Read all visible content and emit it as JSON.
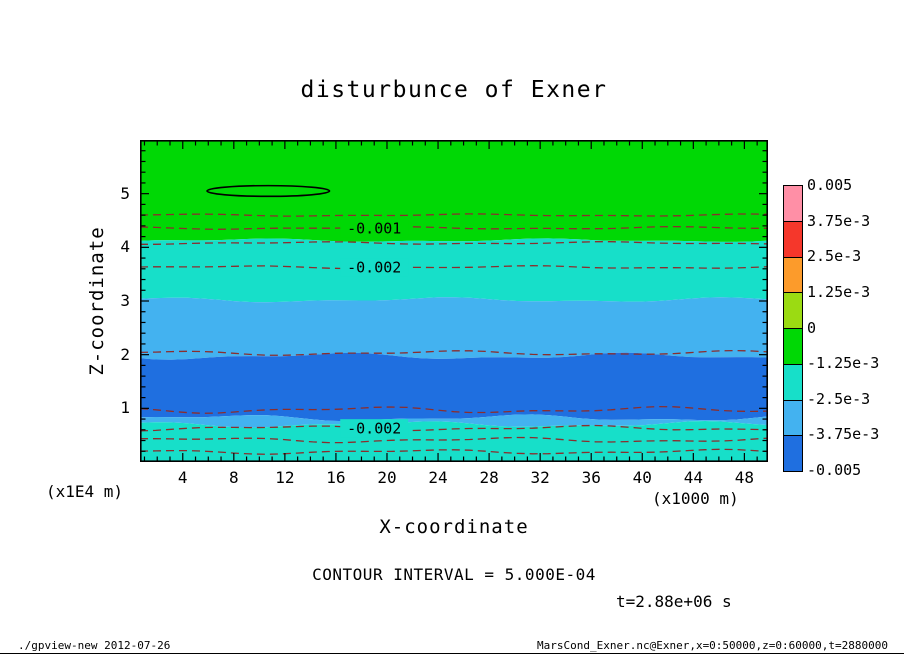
{
  "figure": {
    "contour_note": "CONTOUR INTERVAL = 5.000E-04",
    "time_label": "t=2.88e+06 s",
    "footer_left": "./gpview-new  2012-07-26",
    "footer_right": "MarsCond_Exner.nc@Exner,x=0:50000,z=0:60000,t=2880000"
  },
  "chart_data": {
    "type": "heatmap",
    "title": "disturbunce of Exner",
    "xlabel": "X-coordinate",
    "ylabel": "Z-coordinate",
    "x_unit_label": "(x1000 m)",
    "y_unit_label": "(x1E4 m)",
    "xlim": [
      0.65,
      49.85
    ],
    "ylim": [
      0,
      6
    ],
    "x_ticks": [
      4,
      8,
      12,
      16,
      20,
      24,
      28,
      32,
      36,
      40,
      44,
      48
    ],
    "y_ticks": [
      1,
      2,
      3,
      4,
      5
    ],
    "grid": false,
    "contour_interval": 0.0005,
    "line_color": "#8B2E2E",
    "label_x": 19.0,
    "bands": [
      {
        "z_top": 6.0,
        "z_bottom": 4.13,
        "value_min": -0.00125,
        "value_max": 0.0005,
        "color": "#00D805",
        "wave_amp": 1.2
      },
      {
        "z_top": 4.13,
        "z_bottom": 3.02,
        "value_min": -0.0025,
        "value_max": -0.00125,
        "color": "#17DFC9",
        "wave_amp": 1.3
      },
      {
        "z_top": 3.02,
        "z_bottom": 1.97,
        "value_min": -0.00375,
        "value_max": -0.0025,
        "color": "#43B2F0",
        "wave_amp": 1.8
      },
      {
        "z_top": 1.97,
        "z_bottom": 0.82,
        "value_min": -0.005,
        "value_max": -0.00375,
        "color": "#1F6FE0",
        "wave_amp": 2.4
      },
      {
        "z_top": 0.82,
        "z_bottom": 0.7,
        "value_min": -0.00375,
        "value_max": -0.0025,
        "color": "#43B2F0",
        "wave_amp": 2.4
      },
      {
        "z_top": 0.7,
        "z_bottom": 0.0,
        "value_min": -0.0025,
        "value_max": -0.00125,
        "color": "#17DFC9",
        "wave_amp": 2.2
      }
    ],
    "contour_lines": [
      {
        "z": 4.6,
        "value": -0.0005,
        "style": "dashed",
        "wave_amp": 0.8
      },
      {
        "z": 4.36,
        "value": -0.001,
        "style": "dashed",
        "wave_amp": 0.9,
        "label": "-0.001"
      },
      {
        "z": 4.08,
        "value": -0.0015,
        "style": "dashed",
        "wave_amp": 0.9
      },
      {
        "z": 3.63,
        "value": -0.002,
        "style": "dashed",
        "wave_amp": 1.0,
        "label": "-0.002"
      },
      {
        "z": 2.03,
        "value": -0.0035,
        "style": "dashed",
        "wave_amp": 1.6
      },
      {
        "z": 0.97,
        "value": -0.004,
        "style": "dashed",
        "wave_amp": 2.2
      },
      {
        "z": 0.63,
        "value": -0.002,
        "style": "dashed",
        "wave_amp": 1.8,
        "label": "-0.002"
      },
      {
        "z": 0.41,
        "value": -0.0015,
        "style": "dashed",
        "wave_amp": 1.8
      },
      {
        "z": 0.19,
        "value": -0.001,
        "style": "dashed",
        "wave_amp": 1.6
      }
    ],
    "closed_contour": {
      "x_center": 10.7,
      "z_center": 5.05,
      "x_radius": 4.8,
      "z_radius": 0.1,
      "value": 0.0,
      "style": "solid"
    },
    "colorbar": {
      "labels": [
        "0.005",
        "3.75e-3",
        "2.5e-3",
        "1.25e-3",
        "0",
        "-1.25e-3",
        "-2.5e-3",
        "-3.75e-3",
        "-0.005"
      ],
      "colors": [
        "#FF8FA6",
        "#F5372B",
        "#FC9B2B",
        "#9BDB12",
        "#00D805",
        "#17DFC9",
        "#43B2F0",
        "#1F6FE0"
      ]
    }
  }
}
